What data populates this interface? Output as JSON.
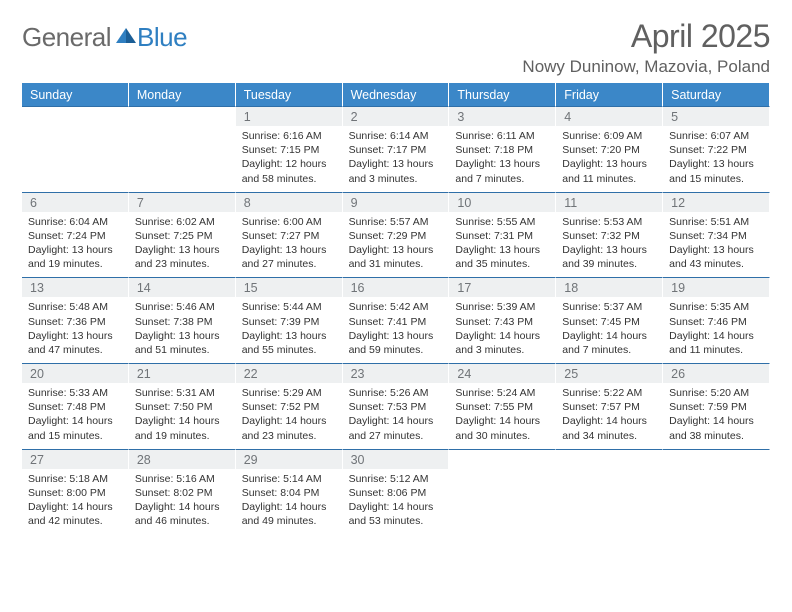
{
  "brand": {
    "word1": "General",
    "word2": "Blue"
  },
  "title": "April 2025",
  "location": "Nowy Duninow, Mazovia, Poland",
  "colors": {
    "header_bg": "#3b87c8",
    "header_text": "#ffffff",
    "daynum_bg": "#eef0f1",
    "daynum_text": "#707478",
    "divider": "#2f6fa8",
    "body_text": "#333333",
    "logo_gray": "#6a6a6a",
    "logo_blue": "#2f7fc1",
    "title_gray": "#606060",
    "page_bg": "#ffffff"
  },
  "typography": {
    "title_size": 32,
    "location_size": 17,
    "header_size": 12.5,
    "daynum_size": 12.5,
    "body_size": 10.5,
    "family": "Arial"
  },
  "weekdays": [
    "Sunday",
    "Monday",
    "Tuesday",
    "Wednesday",
    "Thursday",
    "Friday",
    "Saturday"
  ],
  "leading_blank": 2,
  "days": [
    {
      "n": 1,
      "sr": "6:16 AM",
      "ss": "7:15 PM",
      "dl": "12 hours and 58 minutes."
    },
    {
      "n": 2,
      "sr": "6:14 AM",
      "ss": "7:17 PM",
      "dl": "13 hours and 3 minutes."
    },
    {
      "n": 3,
      "sr": "6:11 AM",
      "ss": "7:18 PM",
      "dl": "13 hours and 7 minutes."
    },
    {
      "n": 4,
      "sr": "6:09 AM",
      "ss": "7:20 PM",
      "dl": "13 hours and 11 minutes."
    },
    {
      "n": 5,
      "sr": "6:07 AM",
      "ss": "7:22 PM",
      "dl": "13 hours and 15 minutes."
    },
    {
      "n": 6,
      "sr": "6:04 AM",
      "ss": "7:24 PM",
      "dl": "13 hours and 19 minutes."
    },
    {
      "n": 7,
      "sr": "6:02 AM",
      "ss": "7:25 PM",
      "dl": "13 hours and 23 minutes."
    },
    {
      "n": 8,
      "sr": "6:00 AM",
      "ss": "7:27 PM",
      "dl": "13 hours and 27 minutes."
    },
    {
      "n": 9,
      "sr": "5:57 AM",
      "ss": "7:29 PM",
      "dl": "13 hours and 31 minutes."
    },
    {
      "n": 10,
      "sr": "5:55 AM",
      "ss": "7:31 PM",
      "dl": "13 hours and 35 minutes."
    },
    {
      "n": 11,
      "sr": "5:53 AM",
      "ss": "7:32 PM",
      "dl": "13 hours and 39 minutes."
    },
    {
      "n": 12,
      "sr": "5:51 AM",
      "ss": "7:34 PM",
      "dl": "13 hours and 43 minutes."
    },
    {
      "n": 13,
      "sr": "5:48 AM",
      "ss": "7:36 PM",
      "dl": "13 hours and 47 minutes."
    },
    {
      "n": 14,
      "sr": "5:46 AM",
      "ss": "7:38 PM",
      "dl": "13 hours and 51 minutes."
    },
    {
      "n": 15,
      "sr": "5:44 AM",
      "ss": "7:39 PM",
      "dl": "13 hours and 55 minutes."
    },
    {
      "n": 16,
      "sr": "5:42 AM",
      "ss": "7:41 PM",
      "dl": "13 hours and 59 minutes."
    },
    {
      "n": 17,
      "sr": "5:39 AM",
      "ss": "7:43 PM",
      "dl": "14 hours and 3 minutes."
    },
    {
      "n": 18,
      "sr": "5:37 AM",
      "ss": "7:45 PM",
      "dl": "14 hours and 7 minutes."
    },
    {
      "n": 19,
      "sr": "5:35 AM",
      "ss": "7:46 PM",
      "dl": "14 hours and 11 minutes."
    },
    {
      "n": 20,
      "sr": "5:33 AM",
      "ss": "7:48 PM",
      "dl": "14 hours and 15 minutes."
    },
    {
      "n": 21,
      "sr": "5:31 AM",
      "ss": "7:50 PM",
      "dl": "14 hours and 19 minutes."
    },
    {
      "n": 22,
      "sr": "5:29 AM",
      "ss": "7:52 PM",
      "dl": "14 hours and 23 minutes."
    },
    {
      "n": 23,
      "sr": "5:26 AM",
      "ss": "7:53 PM",
      "dl": "14 hours and 27 minutes."
    },
    {
      "n": 24,
      "sr": "5:24 AM",
      "ss": "7:55 PM",
      "dl": "14 hours and 30 minutes."
    },
    {
      "n": 25,
      "sr": "5:22 AM",
      "ss": "7:57 PM",
      "dl": "14 hours and 34 minutes."
    },
    {
      "n": 26,
      "sr": "5:20 AM",
      "ss": "7:59 PM",
      "dl": "14 hours and 38 minutes."
    },
    {
      "n": 27,
      "sr": "5:18 AM",
      "ss": "8:00 PM",
      "dl": "14 hours and 42 minutes."
    },
    {
      "n": 28,
      "sr": "5:16 AM",
      "ss": "8:02 PM",
      "dl": "14 hours and 46 minutes."
    },
    {
      "n": 29,
      "sr": "5:14 AM",
      "ss": "8:04 PM",
      "dl": "14 hours and 49 minutes."
    },
    {
      "n": 30,
      "sr": "5:12 AM",
      "ss": "8:06 PM",
      "dl": "14 hours and 53 minutes."
    }
  ],
  "labels": {
    "sunrise": "Sunrise:",
    "sunset": "Sunset:",
    "daylight": "Daylight:"
  }
}
